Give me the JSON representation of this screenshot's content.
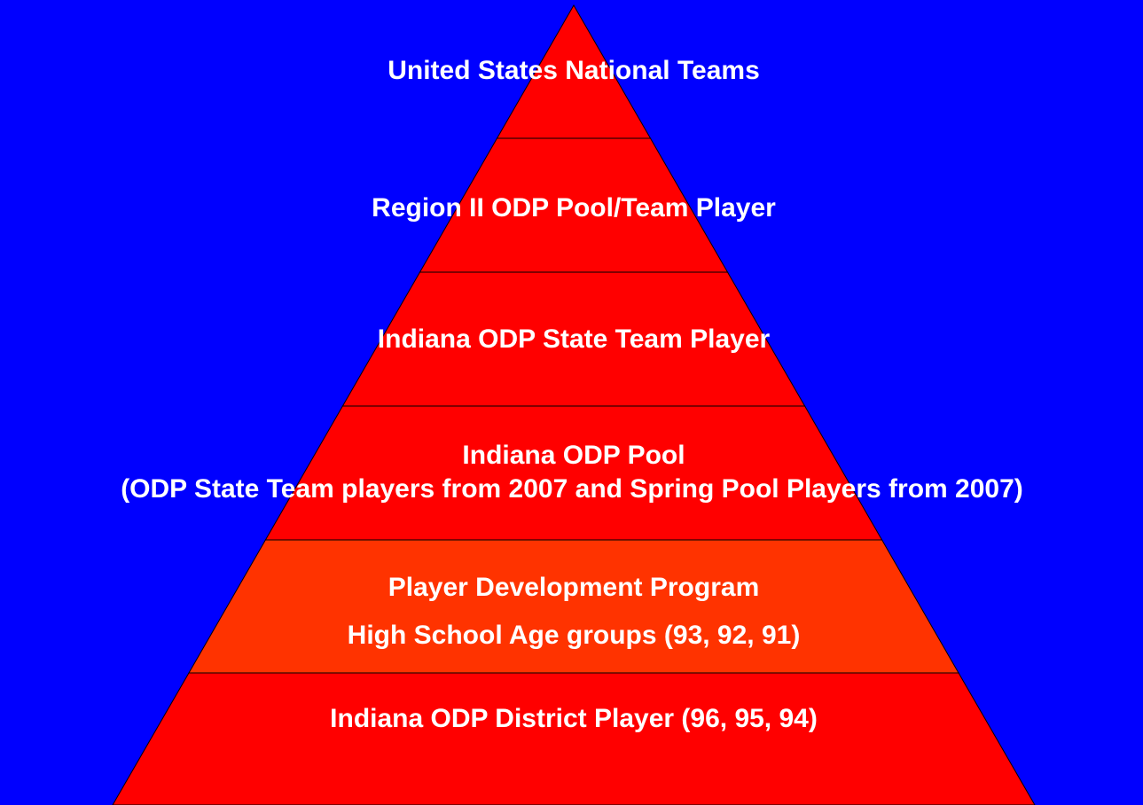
{
  "levels": [
    {
      "lines": [
        "United States National Teams"
      ]
    },
    {
      "lines": [
        "Region II ODP Pool/Team Player"
      ]
    },
    {
      "lines": [
        "Indiana ODP State Team Player"
      ]
    },
    {
      "lines": [
        "Indiana ODP Pool",
        "(ODP State Team players from 2007 and Spring Pool Players from 2007)"
      ]
    },
    {
      "lines": [
        "Player Development Program",
        "High School Age groups (93, 92, 91)"
      ]
    },
    {
      "lines": [
        "Indiana ODP District Player (96, 95, 94)"
      ]
    }
  ]
}
